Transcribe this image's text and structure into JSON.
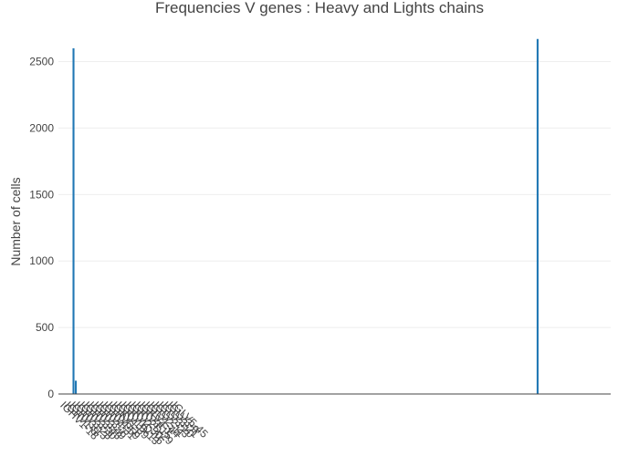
{
  "chart_data": {
    "type": "bar",
    "title": "Frequencies V genes : Heavy and Lights chains",
    "xlabel": "",
    "ylabel": "Number of cells",
    "ylim": [
      0,
      2730
    ],
    "yticks": [
      0,
      500,
      1000,
      1500,
      2000,
      2500
    ],
    "tick_labels": [
      "IGHV1-18",
      "IGHV1-8",
      "IGHV3-13",
      "IGHV3-23",
      "IGHV3-30",
      "IGHV3-43",
      "IGHV3-49",
      "IGHV3-7",
      "IGHV4-31",
      "IGHV4-59",
      "IGHV6-1",
      "IGKV1-39",
      "IGKV1D-13",
      "IGKV1D-16",
      "IGKV2-30",
      "IGKV2D-29",
      "IGKV3-15",
      "IGKV4-1",
      "IGLV1-44",
      "IGLV2-11",
      "IGLV2-23",
      "IGLV3-10",
      "IGLV3-21",
      "IGLV3-9",
      "IGLV5-45"
    ],
    "tick_positions": [
      0,
      2,
      4,
      6,
      8,
      10,
      12,
      14,
      16,
      18,
      20,
      22,
      24,
      26,
      28,
      30,
      32,
      34,
      36,
      38,
      40,
      42,
      44,
      46,
      48
    ],
    "values": [
      2,
      1,
      1,
      1,
      1,
      1,
      2600,
      100,
      1,
      1,
      3,
      1,
      1,
      1,
      1,
      2,
      1,
      2,
      1,
      2,
      2,
      3,
      1,
      1,
      1,
      1,
      1,
      2,
      1,
      1,
      1,
      1,
      1,
      1,
      1,
      1,
      1,
      2,
      1,
      2,
      1,
      1,
      3,
      3,
      3,
      2,
      2,
      1,
      1,
      1,
      1,
      1,
      1,
      1,
      1,
      1,
      1,
      1,
      1,
      1,
      1,
      1,
      1,
      1,
      1,
      1,
      1,
      1,
      1,
      1,
      1,
      1,
      1,
      1,
      1,
      1,
      1,
      1,
      1,
      1,
      1,
      1,
      1,
      1,
      1,
      1,
      1,
      1,
      1,
      1,
      1,
      1,
      1,
      1,
      1,
      1,
      1,
      1,
      1,
      1,
      1,
      2,
      2,
      2,
      2,
      1,
      1,
      1,
      1,
      1,
      1,
      1,
      1,
      1,
      1,
      1,
      1,
      1,
      1,
      1,
      1,
      1,
      1,
      1,
      1,
      1,
      1,
      1,
      2,
      2,
      2,
      2,
      1,
      1,
      1,
      1,
      1,
      1,
      1,
      1,
      1,
      1,
      1,
      1,
      1,
      1,
      1,
      1,
      1,
      1,
      1,
      2,
      1,
      1,
      1,
      1,
      1,
      1,
      1,
      2,
      1,
      1,
      1,
      1,
      1,
      1,
      1,
      1,
      1,
      1,
      1,
      2,
      1,
      1,
      1,
      1,
      1,
      1,
      1,
      1,
      1,
      1,
      1,
      1,
      1,
      1,
      1,
      1,
      1,
      2,
      1,
      1,
      1,
      1,
      1,
      1,
      1,
      1,
      1,
      1,
      1,
      1,
      1,
      1,
      1,
      1,
      2670,
      1,
      1,
      2,
      2,
      2,
      1,
      1,
      1,
      1,
      1,
      1,
      1,
      2,
      1,
      1,
      1,
      1,
      1,
      1,
      1,
      1,
      1,
      1,
      1,
      1,
      1,
      2,
      1,
      1,
      1,
      1
    ],
    "grid": true,
    "colors": {
      "bar": "#1f77b4",
      "grid": "#eeeeee",
      "text": "#444444"
    }
  }
}
